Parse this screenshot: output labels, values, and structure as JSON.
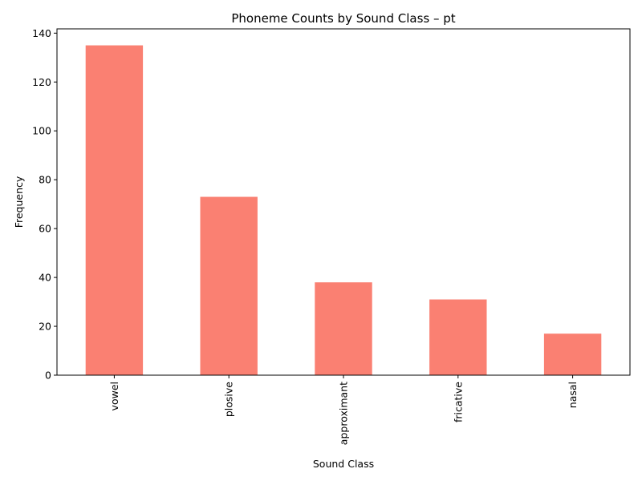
{
  "chart_data": {
    "type": "bar",
    "title": "Phoneme Counts by Sound Class – pt",
    "xlabel": "Sound Class",
    "ylabel": "Frequency",
    "categories": [
      "vowel",
      "plosive",
      "approximant",
      "fricative",
      "nasal"
    ],
    "values": [
      135,
      73,
      38,
      31,
      17
    ],
    "ylim": [
      0,
      141.75
    ],
    "yticks": [
      0,
      20,
      40,
      60,
      80,
      100,
      120,
      140
    ],
    "ytick_labels": [
      "0",
      "20",
      "40",
      "60",
      "80",
      "100",
      "120",
      "140"
    ],
    "bar_color": "#fa8072",
    "grid": false,
    "legend": "none"
  }
}
